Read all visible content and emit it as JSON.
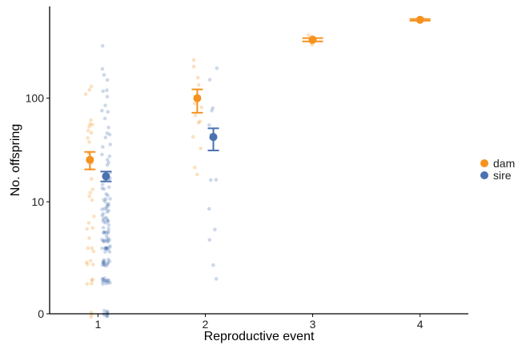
{
  "chart_data": {
    "type": "scatter",
    "xlabel": "Reproductive event",
    "ylabel": "No. offspring",
    "x_ticks": [
      "1",
      "2",
      "3",
      "4"
    ],
    "y_ticks": [
      "0",
      "10",
      "100"
    ],
    "y_tick_values": [
      0,
      10,
      100
    ],
    "y_scale": "log1p",
    "ylim": [
      0,
      720
    ],
    "xlim": [
      0.55,
      4.45
    ],
    "grid": false,
    "legend_position": "right",
    "series": [
      {
        "name": "dam",
        "color": "#F5921E",
        "mean_points": [
          {
            "x": 1,
            "y": 26,
            "lo": 21,
            "hi": 31
          },
          {
            "x": 2,
            "y": 100,
            "lo": 73,
            "hi": 121
          },
          {
            "x": 3,
            "y": 352,
            "lo": 340,
            "hi": 365
          },
          {
            "x": 4,
            "y": 540,
            "lo": 530,
            "hi": 550
          }
        ],
        "raw_points": {
          "1": [
            0,
            0,
            0,
            1,
            1,
            1,
            1,
            2,
            2,
            2,
            2,
            3,
            3,
            3,
            4,
            5,
            5,
            6,
            7,
            10,
            12,
            13,
            13,
            16,
            20,
            24,
            26,
            30,
            32,
            36,
            40,
            44,
            48,
            52,
            56,
            60,
            64,
            110,
            120,
            125
          ],
          "2": [
            20,
            22,
            34,
            44,
            58,
            62,
            72,
            82,
            90,
            140,
            160,
            210,
            220
          ],
          "3": [
            330,
            345,
            360,
            375,
            380
          ],
          "4": [
            560,
            600
          ]
        }
      },
      {
        "name": "sire",
        "color": "#4A72B0",
        "mean_points": [
          {
            "x": 1,
            "y": 18,
            "lo": 16,
            "hi": 20
          },
          {
            "x": 2,
            "y": 43,
            "lo": 32,
            "hi": 52
          }
        ],
        "raw_points": {
          "1": [
            0,
            0,
            0,
            0,
            0,
            0,
            0,
            0,
            0,
            0,
            1,
            1,
            1,
            1,
            1,
            1,
            1,
            1,
            1,
            1,
            1,
            1,
            1,
            1,
            2,
            2,
            2,
            2,
            2,
            2,
            2,
            2,
            2,
            2,
            2,
            2,
            2,
            2,
            3,
            3,
            3,
            3,
            3,
            3,
            3,
            3,
            3,
            3,
            3,
            3,
            4,
            4,
            4,
            4,
            4,
            4,
            4,
            4,
            4,
            4,
            5,
            5,
            5,
            5,
            5,
            5,
            5,
            5,
            6,
            6,
            6,
            6,
            6,
            6,
            7,
            7,
            7,
            7,
            7,
            8,
            8,
            8,
            8,
            9,
            9,
            9,
            10,
            10,
            10,
            10,
            11,
            11,
            12,
            12,
            13,
            13,
            14,
            15,
            16,
            17,
            18,
            19,
            20,
            22,
            24,
            26,
            28,
            30,
            33,
            36,
            40,
            45,
            50,
            55,
            62,
            70,
            80,
            90,
            100,
            110,
            120,
            140,
            160,
            180,
            300
          ],
          "2": [
            1,
            2,
            4,
            5,
            8,
            17,
            17,
            42,
            47,
            54,
            75,
            80,
            140,
            180
          ]
        }
      }
    ]
  }
}
